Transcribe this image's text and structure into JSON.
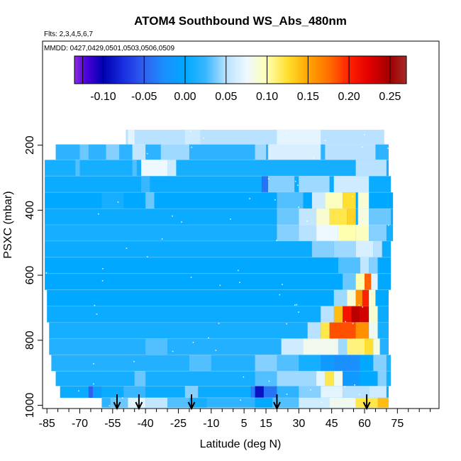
{
  "chart_data": {
    "type": "heatmap",
    "title": "ATOM4 Southbound WS_Abs_480nm",
    "note_flights": "Flts: 2,3,4,5,6,7",
    "note_dates": "MMDD: 0427,0429,0501,0503,0506,0509",
    "xlabel": "Latitude (deg N)",
    "ylabel": "PSXC (mbar)",
    "xlim": [
      -87,
      94
    ],
    "ylim": [
      1010,
      -120
    ],
    "x_ticks": [
      -85,
      -70,
      -55,
      -40,
      -25,
      -10,
      5,
      15,
      30,
      45,
      60,
      75
    ],
    "x_minor_step": 5,
    "y_ticks": [
      200,
      400,
      600,
      800,
      1000
    ],
    "colorbar": {
      "min": -0.135,
      "max": 0.27,
      "ticks": [
        -0.1,
        -0.05,
        0.0,
        0.05,
        0.1,
        0.15,
        0.2,
        0.25
      ],
      "tick_labels": [
        "-0.10",
        "-0.05",
        "0.00",
        "0.05",
        "0.10",
        "0.15",
        "0.20",
        "0.25"
      ],
      "separators": [
        -0.125,
        -0.1,
        -0.05,
        0.0,
        0.05,
        0.1,
        0.15,
        0.2,
        0.25
      ],
      "stops": [
        {
          "v": -0.135,
          "c": "#8a2be2"
        },
        {
          "v": -0.12,
          "c": "#4a00d8"
        },
        {
          "v": -0.1,
          "c": "#0000b0"
        },
        {
          "v": -0.075,
          "c": "#1a2fe0"
        },
        {
          "v": -0.05,
          "c": "#3060f0"
        },
        {
          "v": -0.025,
          "c": "#1a90ff"
        },
        {
          "v": 0.0,
          "c": "#00a8ff"
        },
        {
          "v": 0.025,
          "c": "#38b6ff"
        },
        {
          "v": 0.05,
          "c": "#b8e2ff"
        },
        {
          "v": 0.075,
          "c": "#eef8ff"
        },
        {
          "v": 0.1,
          "c": "#ffffb0"
        },
        {
          "v": 0.125,
          "c": "#ffe030"
        },
        {
          "v": 0.15,
          "c": "#ffa500"
        },
        {
          "v": 0.175,
          "c": "#ff7000"
        },
        {
          "v": 0.2,
          "c": "#ff2000"
        },
        {
          "v": 0.225,
          "c": "#e00000"
        },
        {
          "v": 0.25,
          "c": "#a00000"
        },
        {
          "v": 0.27,
          "c": "#a52a2a"
        }
      ]
    },
    "profile_markers_lat": [
      -53,
      -43,
      -19,
      20,
      61
    ],
    "rows": [
      {
        "p": 175,
        "x0": -49,
        "x1": 69,
        "bg": 0.05,
        "feats": [
          [
            -48,
            -45,
            0.07
          ],
          [
            -22,
            -15,
            0.06
          ],
          [
            20,
            40,
            0.07
          ]
        ]
      },
      {
        "p": 220,
        "x0": -81,
        "x1": 71,
        "bg": 0.02,
        "feats": [
          [
            -70,
            -66,
            0.035
          ],
          [
            -58,
            -52,
            0.04
          ],
          [
            -46,
            -40,
            0.055
          ],
          [
            -33,
            -20,
            0.045
          ],
          [
            10,
            15,
            0.045
          ],
          [
            16,
            40,
            0.065
          ],
          [
            42,
            65,
            0.05
          ]
        ]
      },
      {
        "p": 270,
        "x0": -86,
        "x1": 71,
        "bg": 0.01,
        "feats": [
          [
            -72,
            -70,
            0.03
          ],
          [
            -46,
            -44,
            0.03
          ],
          [
            -42,
            -30,
            0.075
          ],
          [
            -30,
            -26,
            0.06
          ],
          [
            56,
            70,
            0.05
          ]
        ]
      },
      {
        "p": 320,
        "x0": -86,
        "x1": 72,
        "bg": 0.005,
        "feats": [
          [
            -42,
            -38,
            0.025
          ],
          [
            13,
            16,
            -0.04
          ],
          [
            16,
            28,
            0.04
          ],
          [
            30,
            44,
            0.045
          ],
          [
            46,
            62,
            0.06
          ]
        ]
      },
      {
        "p": 370,
        "x0": -86,
        "x1": 73,
        "bg": 0.0,
        "feats": [
          [
            -60,
            -50,
            0.01
          ],
          [
            -40,
            -36,
            0.035
          ],
          [
            20,
            32,
            0.03
          ],
          [
            36,
            42,
            0.06
          ],
          [
            42,
            50,
            0.095
          ],
          [
            50,
            56,
            0.125
          ],
          [
            57,
            62,
            0.09
          ]
        ]
      },
      {
        "p": 420,
        "x0": -86,
        "x1": 73,
        "bg": 0.005,
        "feats": [
          [
            20,
            30,
            0.035
          ],
          [
            30,
            38,
            0.055
          ],
          [
            38,
            44,
            0.09
          ],
          [
            44,
            52,
            0.12
          ],
          [
            52,
            56,
            0.13
          ],
          [
            57,
            62,
            0.085
          ],
          [
            62,
            72,
            0.035
          ]
        ]
      },
      {
        "p": 470,
        "x0": -86,
        "x1": 73,
        "bg": 0.01,
        "feats": [
          [
            20,
            30,
            0.04
          ],
          [
            30,
            38,
            0.05
          ],
          [
            38,
            48,
            0.075
          ],
          [
            48,
            56,
            0.1
          ],
          [
            56,
            62,
            0.095
          ],
          [
            62,
            70,
            0.04
          ]
        ]
      },
      {
        "p": 520,
        "x0": -86,
        "x1": 72,
        "bg": 0.005,
        "feats": [
          [
            36,
            46,
            0.04
          ],
          [
            46,
            56,
            0.045
          ],
          [
            56,
            64,
            0.065
          ],
          [
            64,
            68,
            0.05
          ]
        ]
      },
      {
        "p": 570,
        "x0": -86,
        "x1": 72,
        "bg": 0.0,
        "feats": [
          [
            48,
            58,
            0.03
          ],
          [
            58,
            62,
            0.055
          ],
          [
            62,
            66,
            0.04
          ]
        ]
      },
      {
        "p": 620,
        "x0": -86,
        "x1": 72,
        "bg": 0.0,
        "feats": [
          [
            50,
            56,
            0.035
          ],
          [
            56,
            60,
            0.1
          ],
          [
            60,
            63,
            0.18
          ],
          [
            63,
            66,
            0.07
          ]
        ]
      },
      {
        "p": 670,
        "x0": -85,
        "x1": 71,
        "bg": 0.0,
        "feats": [
          [
            46,
            52,
            0.045
          ],
          [
            52,
            56,
            0.09
          ],
          [
            56,
            59,
            0.16
          ],
          [
            59,
            62,
            0.2
          ],
          [
            62,
            65,
            0.09
          ]
        ]
      },
      {
        "p": 720,
        "x0": -85,
        "x1": 71,
        "bg": 0.005,
        "feats": [
          [
            40,
            46,
            0.05
          ],
          [
            46,
            50,
            0.14
          ],
          [
            50,
            54,
            0.21
          ],
          [
            54,
            58,
            0.24
          ],
          [
            58,
            62,
            0.23
          ],
          [
            62,
            66,
            0.09
          ]
        ]
      },
      {
        "p": 770,
        "x0": -84,
        "x1": 71,
        "bg": 0.01,
        "feats": [
          [
            34,
            40,
            0.05
          ],
          [
            40,
            44,
            0.12
          ],
          [
            44,
            56,
            0.185
          ],
          [
            56,
            62,
            0.16
          ],
          [
            62,
            66,
            0.08
          ]
        ]
      },
      {
        "p": 820,
        "x0": -84,
        "x1": 71,
        "bg": 0.015,
        "feats": [
          [
            -40,
            -30,
            0.03
          ],
          [
            22,
            32,
            0.06
          ],
          [
            32,
            48,
            0.08
          ],
          [
            48,
            52,
            0.045
          ],
          [
            52,
            60,
            0.11
          ],
          [
            60,
            64,
            0.125
          ],
          [
            64,
            67,
            0.085
          ]
        ]
      },
      {
        "p": 870,
        "x0": -83,
        "x1": 72,
        "bg": 0.015,
        "feats": [
          [
            -20,
            -10,
            0.03
          ],
          [
            10,
            20,
            0.04
          ],
          [
            20,
            30,
            0.03
          ],
          [
            30,
            40,
            0.01
          ],
          [
            40,
            46,
            -0.015
          ],
          [
            46,
            58,
            -0.025
          ],
          [
            58,
            64,
            0.0
          ],
          [
            64,
            70,
            0.04
          ]
        ]
      },
      {
        "p": 920,
        "x0": -81,
        "x1": 72,
        "bg": 0.01,
        "feats": [
          [
            -45,
            -40,
            0.035
          ],
          [
            10,
            20,
            0.03
          ],
          [
            20,
            38,
            0.045
          ],
          [
            38,
            42,
            0.07
          ],
          [
            42,
            46,
            0.12
          ],
          [
            46,
            50,
            0.08
          ],
          [
            50,
            58,
            -0.015
          ],
          [
            58,
            66,
            0.0
          ],
          [
            66,
            70,
            0.04
          ]
        ]
      },
      {
        "p": 962,
        "x0": -79,
        "x1": 71,
        "bg": 0.005,
        "feats": [
          [
            -66,
            -64,
            -0.05
          ],
          [
            -64,
            -60,
            -0.01
          ],
          [
            -50,
            -40,
            0.025
          ],
          [
            -22,
            -16,
            0.04
          ],
          [
            8,
            10,
            -0.035
          ],
          [
            10,
            14,
            -0.09
          ],
          [
            14,
            20,
            -0.04
          ],
          [
            20,
            30,
            0.02
          ],
          [
            30,
            40,
            0.04
          ],
          [
            40,
            50,
            0.07
          ],
          [
            50,
            62,
            0.05
          ],
          [
            62,
            70,
            0.06
          ]
        ]
      },
      {
        "p": 992,
        "x0": -60,
        "x1": 71,
        "bg": 0.02,
        "feats": [
          [
            -56,
            -48,
            0.035
          ],
          [
            -48,
            -40,
            0.07
          ],
          [
            -40,
            -30,
            0.055
          ],
          [
            -30,
            -20,
            0.03
          ],
          [
            -20,
            -12,
            0.01
          ],
          [
            10,
            18,
            0.0
          ],
          [
            18,
            30,
            0.03
          ],
          [
            30,
            44,
            0.06
          ],
          [
            44,
            56,
            0.08
          ],
          [
            56,
            66,
            0.12
          ],
          [
            66,
            71,
            0.14
          ]
        ]
      }
    ]
  }
}
